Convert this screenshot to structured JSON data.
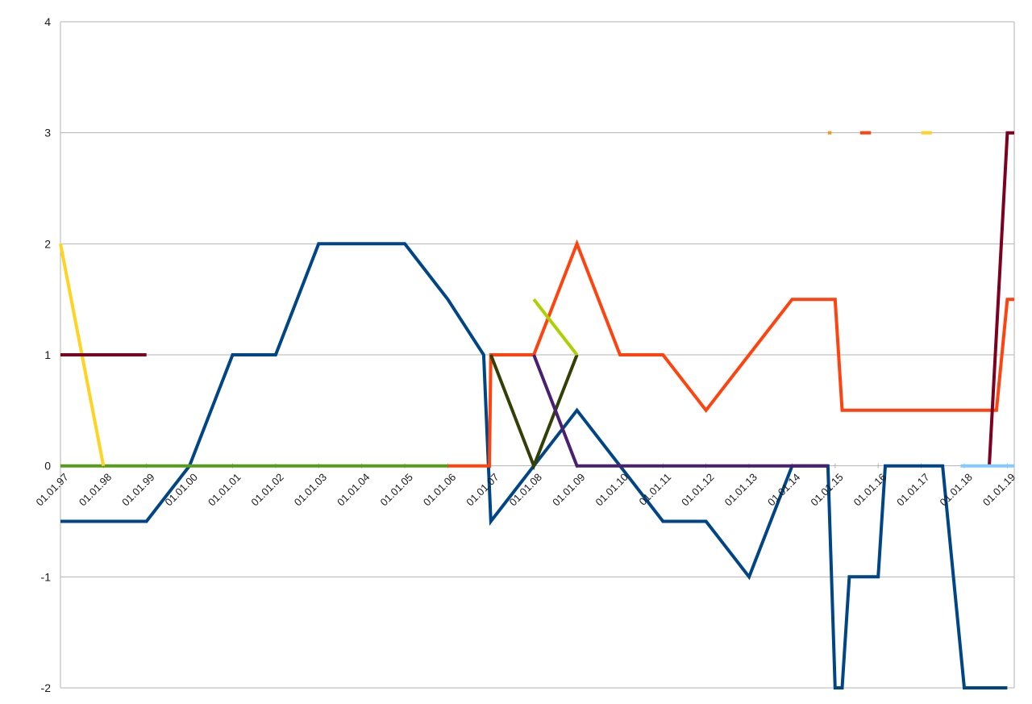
{
  "chart_data": {
    "type": "line",
    "title": "",
    "xlabel": "",
    "ylabel": "",
    "x_axis": {
      "type": "date",
      "tick_labels": [
        "01.01.97",
        "01.01.98",
        "01.01.99",
        "01.01.00",
        "01.01.01",
        "01.01.02",
        "01.01.03",
        "01.01.04",
        "01.01.05",
        "01.01.06",
        "01.01.07",
        "01.01.08",
        "01.01.09",
        "01.01.10",
        "01.01.11",
        "01.01.12",
        "01.01.13",
        "01.01.14",
        "01.01.15",
        "01.01.16",
        "01.01.17",
        "01.01.18",
        "01.01.19"
      ],
      "range": [
        "1997-01-01",
        "2019-03-01"
      ]
    },
    "y_axis": {
      "range": [
        -2,
        4
      ],
      "tick_labels": [
        "-2",
        "-1",
        "0",
        "1",
        "2",
        "3",
        "4"
      ]
    },
    "grid": "horizontal",
    "legend": "none",
    "series": [
      {
        "color": "#004586",
        "width": 4,
        "points": [
          [
            "1997-01-01",
            -0.5
          ],
          [
            "1999-01-01",
            -0.5
          ],
          [
            "2000-01-01",
            0
          ],
          [
            "2001-01-01",
            1
          ],
          [
            "2002-01-01",
            1
          ],
          [
            "2003-01-01",
            2
          ],
          [
            "2005-01-01",
            2
          ],
          [
            "2006-01-01",
            1.5
          ],
          [
            "2006-11-01",
            1
          ],
          [
            "2007-01-01",
            -0.5
          ],
          [
            "2008-01-01",
            0
          ],
          [
            "2009-01-01",
            0.5
          ],
          [
            "2010-01-01",
            0
          ],
          [
            "2011-01-01",
            -0.5
          ],
          [
            "2012-01-01",
            -0.5
          ],
          [
            "2013-01-01",
            -1
          ],
          [
            "2014-01-01",
            0
          ],
          [
            "2014-11-01",
            0
          ],
          [
            "2015-01-01",
            -2
          ],
          [
            "2015-03-01",
            -2
          ],
          [
            "2015-05-01",
            -1
          ],
          [
            "2016-01-01",
            -1
          ],
          [
            "2016-03-01",
            0
          ],
          [
            "2017-07-01",
            0
          ],
          [
            "2018-01-01",
            -2
          ],
          [
            "2019-01-01",
            -2
          ]
        ]
      },
      {
        "color": "#ff420e",
        "width": 4,
        "points": [
          [
            "2006-01-01",
            0
          ],
          [
            "2006-11-01",
            0
          ],
          [
            "2006-12-20",
            0
          ],
          [
            "2007-01-01",
            1
          ],
          [
            "2008-01-01",
            1
          ],
          [
            "2009-01-01",
            2
          ],
          [
            "2010-01-01",
            1
          ],
          [
            "2011-01-01",
            1
          ],
          [
            "2012-01-01",
            0.5
          ],
          [
            "2013-01-01",
            1
          ],
          [
            "2014-01-01",
            1.5
          ],
          [
            "2015-01-01",
            1.5
          ],
          [
            "2015-03-01",
            0.5
          ],
          [
            "2018-10-01",
            0.5
          ],
          [
            "2019-01-01",
            1.5
          ],
          [
            "2019-03-01",
            1.5
          ]
        ]
      },
      {
        "color": "#579d1c",
        "width": 4,
        "points": [
          [
            "1997-01-01",
            0
          ],
          [
            "2006-01-01",
            0
          ]
        ]
      },
      {
        "color": "#ffd320",
        "width": 4,
        "points": [
          [
            "1997-01-01",
            2
          ],
          [
            "1998-01-01",
            0
          ]
        ]
      },
      {
        "color": "#7e0021",
        "width": 4,
        "points": [
          [
            "1997-01-01",
            1
          ],
          [
            "1999-01-01",
            1
          ]
        ]
      },
      {
        "color": "#7e0021",
        "width": 4,
        "points": [
          [
            "2018-08-01",
            0
          ],
          [
            "2019-01-01",
            3
          ],
          [
            "2019-03-01",
            3
          ]
        ]
      },
      {
        "color": "#314004",
        "width": 4,
        "points": [
          [
            "2007-01-01",
            1
          ],
          [
            "2008-01-01",
            0
          ],
          [
            "2009-01-01",
            1
          ]
        ]
      },
      {
        "color": "#aecf00",
        "width": 4,
        "points": [
          [
            "2008-01-01",
            1.5
          ],
          [
            "2009-01-01",
            1
          ]
        ]
      },
      {
        "color": "#4b1f6f",
        "width": 4,
        "points": [
          [
            "2008-01-01",
            1
          ],
          [
            "2009-01-01",
            0
          ],
          [
            "2014-11-01",
            0
          ]
        ]
      },
      {
        "color": "#83caff",
        "width": 4,
        "points": [
          [
            "2017-12-01",
            0
          ],
          [
            "2019-03-01",
            0
          ]
        ]
      },
      {
        "color": "#ff950e",
        "width": 4,
        "points": [
          [
            "2014-11-01",
            3
          ],
          [
            "2014-12-01",
            3
          ]
        ]
      },
      {
        "color": "#ff420e",
        "width": 4,
        "points": [
          [
            "2015-08-01",
            3
          ],
          [
            "2015-11-01",
            3
          ]
        ]
      },
      {
        "color": "#ffd320",
        "width": 4,
        "points": [
          [
            "2017-01-01",
            3
          ],
          [
            "2017-04-01",
            3
          ]
        ]
      }
    ]
  }
}
